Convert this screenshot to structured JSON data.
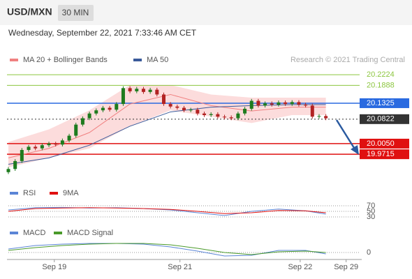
{
  "header": {
    "symbol": "USD/MXN",
    "timeframe": "30 MIN",
    "datetime": "Wednesday, September 22, 2021 7:33:46 AM CET"
  },
  "source": "Research © 2021 Trading Central",
  "chart_data": [
    {
      "type": "candlestick",
      "xlim": [
        0,
        52
      ],
      "ylim": [
        19.897,
        20.282
      ],
      "xticks": [
        {
          "value": 6.8,
          "label": "Sep 19"
        },
        {
          "value": 25.4,
          "label": "Sep 21"
        },
        {
          "value": 43.2,
          "label": "Sep 22"
        },
        {
          "value": 50,
          "label": "Sep 29"
        }
      ],
      "up_color": "#1e7b1e",
      "down_color": "#b22222",
      "open": [
        19.915,
        19.925,
        19.95,
        19.985,
        19.995,
        19.99,
        20.0,
        20.005,
        20.002,
        20.015,
        20.03,
        20.065,
        20.085,
        20.1,
        20.11,
        20.118,
        20.112,
        20.13,
        20.18,
        20.17,
        20.178,
        20.168,
        20.175,
        20.16,
        20.13,
        20.122,
        20.118,
        20.11,
        20.112,
        20.1,
        20.095,
        20.098,
        20.09,
        20.088,
        20.085,
        20.1,
        20.115,
        20.14,
        20.125,
        20.132,
        20.128,
        20.135,
        20.13,
        20.136,
        20.128,
        20.125,
        20.09,
        20.092
      ],
      "high": [
        19.931,
        19.956,
        19.991,
        20.001,
        20.001,
        20.006,
        20.011,
        20.011,
        20.021,
        20.036,
        20.071,
        20.091,
        20.106,
        20.116,
        20.124,
        20.124,
        20.136,
        20.186,
        20.186,
        20.184,
        20.184,
        20.181,
        20.181,
        20.166,
        20.136,
        20.128,
        20.124,
        20.118,
        20.118,
        20.106,
        20.104,
        20.104,
        20.096,
        20.094,
        20.106,
        20.121,
        20.146,
        20.146,
        20.138,
        20.138,
        20.141,
        20.141,
        20.142,
        20.142,
        20.134,
        20.131,
        20.098,
        20.098
      ],
      "low": [
        19.909,
        19.919,
        19.944,
        19.979,
        19.984,
        19.984,
        19.994,
        19.996,
        19.996,
        20.009,
        20.024,
        20.059,
        20.079,
        20.094,
        20.104,
        20.106,
        20.106,
        20.124,
        20.164,
        20.164,
        20.162,
        20.162,
        20.154,
        20.124,
        20.116,
        20.112,
        20.104,
        20.104,
        20.094,
        20.089,
        20.089,
        20.084,
        20.082,
        20.079,
        20.079,
        20.094,
        20.109,
        20.119,
        20.119,
        20.122,
        20.122,
        20.124,
        20.124,
        20.122,
        20.119,
        20.084,
        20.084,
        20.079
      ],
      "close": [
        19.925,
        19.95,
        19.985,
        19.995,
        19.99,
        20.0,
        20.005,
        20.002,
        20.015,
        20.03,
        20.065,
        20.085,
        20.1,
        20.11,
        20.118,
        20.112,
        20.13,
        20.18,
        20.17,
        20.178,
        20.168,
        20.175,
        20.16,
        20.13,
        20.122,
        20.118,
        20.11,
        20.112,
        20.1,
        20.095,
        20.098,
        20.09,
        20.088,
        20.085,
        20.1,
        20.115,
        20.14,
        20.125,
        20.132,
        20.128,
        20.135,
        20.13,
        20.136,
        20.128,
        20.125,
        20.09,
        20.092,
        20.085
      ],
      "overlays": [
        {
          "name": "MA 20 + Bollinger Bands",
          "color": "#f08080",
          "band_color": "#fcdcdc",
          "x": [
            0,
            6,
            12,
            18,
            24,
            30,
            36,
            42,
            47
          ],
          "values": [
            19.96,
            19.99,
            20.04,
            20.13,
            20.16,
            20.125,
            20.108,
            20.12,
            20.12
          ],
          "upper": [
            20.01,
            20.05,
            20.11,
            20.19,
            20.19,
            20.16,
            20.15,
            20.15,
            20.15
          ],
          "lower": [
            19.93,
            19.96,
            19.99,
            20.06,
            20.11,
            20.09,
            20.07,
            20.095,
            20.095
          ]
        },
        {
          "name": "MA 50",
          "color": "#3a5a9a",
          "x": [
            0,
            6,
            12,
            18,
            24,
            30,
            36,
            42,
            47
          ],
          "values": [
            19.94,
            19.96,
            20.0,
            20.06,
            20.105,
            20.12,
            20.125,
            20.128,
            20.128
          ]
        }
      ],
      "levels": [
        {
          "value": 20.2224,
          "label": "20.2224",
          "color": "#8cc63f",
          "boxed": false,
          "dashed": false
        },
        {
          "value": 20.1888,
          "label": "20.1888",
          "color": "#8cc63f",
          "boxed": false,
          "dashed": false
        },
        {
          "value": 20.1325,
          "label": "20.1325",
          "color": "#2a6ae0",
          "boxed": true,
          "dashed": false
        },
        {
          "value": 20.0822,
          "label": "20.0822",
          "color": "#333333",
          "boxed": true,
          "dashed": true
        },
        {
          "value": 20.005,
          "label": "20.0050",
          "color": "#e01010",
          "boxed": true,
          "dashed": false
        },
        {
          "value": 19.9715,
          "label": "19.9715",
          "color": "#e01010",
          "boxed": true,
          "dashed": false
        }
      ]
    },
    {
      "type": "line",
      "xlim": [
        0,
        52
      ],
      "ylim": [
        20,
        100
      ],
      "yticks": [
        70,
        50,
        30
      ],
      "series": [
        {
          "name": "RSI",
          "color": "#5b85d6",
          "x": [
            0,
            4,
            8,
            12,
            16,
            20,
            24,
            28,
            32,
            36,
            40,
            44,
            47
          ],
          "values": [
            55,
            63,
            64,
            62,
            63,
            60,
            55,
            45,
            35,
            50,
            58,
            52,
            40
          ]
        },
        {
          "name": "9MA",
          "color": "#e01010",
          "x": [
            0,
            4,
            8,
            12,
            16,
            20,
            24,
            28,
            32,
            36,
            40,
            44,
            47
          ],
          "values": [
            50,
            60,
            62,
            63,
            62,
            60,
            57,
            50,
            42,
            45,
            53,
            52,
            45
          ]
        }
      ]
    },
    {
      "type": "line",
      "xlim": [
        0,
        52
      ],
      "ylim": [
        -0.01,
        0.03
      ],
      "yticks": [
        0
      ],
      "series": [
        {
          "name": "MACD",
          "color": "#5b85d6",
          "x": [
            0,
            4,
            8,
            12,
            16,
            20,
            24,
            28,
            32,
            36,
            40,
            44,
            47
          ],
          "values": [
            0.005,
            0.01,
            0.012,
            0.013,
            0.013,
            0.012,
            0.008,
            0.002,
            -0.005,
            -0.004,
            0.003,
            0.003,
            -0.002
          ]
        },
        {
          "name": "MACD Signal",
          "color": "#4a9a2a",
          "x": [
            0,
            4,
            8,
            12,
            16,
            20,
            24,
            28,
            32,
            36,
            40,
            44,
            47
          ],
          "values": [
            0.003,
            0.007,
            0.01,
            0.012,
            0.013,
            0.013,
            0.011,
            0.006,
            0.0,
            -0.003,
            0.001,
            0.002,
            0.0
          ]
        }
      ]
    }
  ]
}
